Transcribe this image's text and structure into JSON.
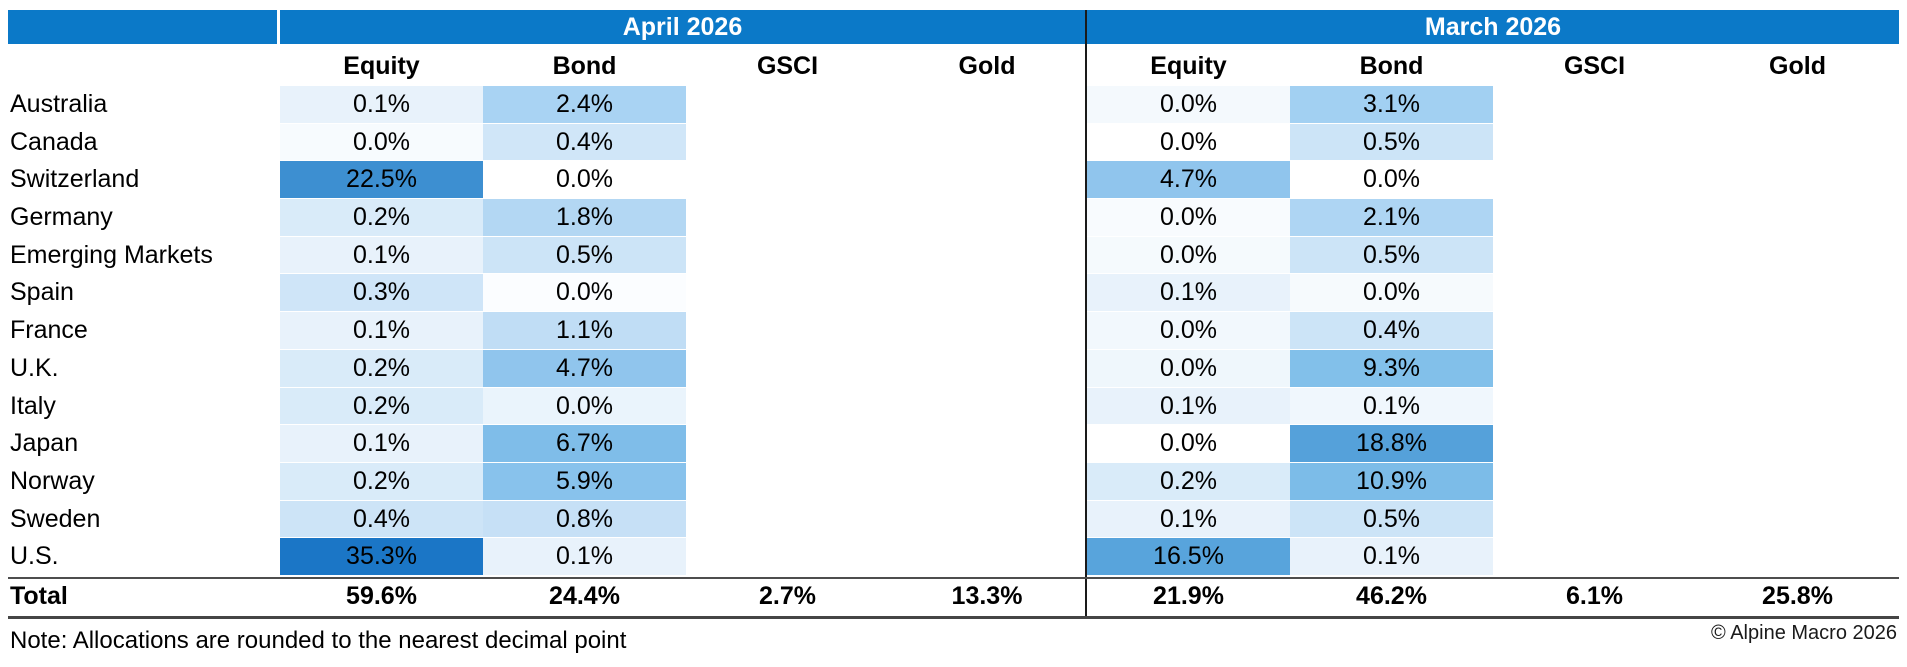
{
  "accent": {
    "header_blue": "#0b79c8",
    "divider_black": "#1a1a1a",
    "rule_dark": "#4d4d4d",
    "heat_max_blue": "#1b76c6",
    "heat_min_white": "#ffffff"
  },
  "months": {
    "april": "April 2026",
    "march": "March 2026"
  },
  "columns": [
    "Equity",
    "Bond",
    "GSCI",
    "Gold"
  ],
  "table": {
    "rows": [
      {
        "label": "Australia",
        "april": {
          "equity": {
            "v": "0.1%",
            "bg": "#e8f2fb"
          },
          "bond": {
            "v": "2.4%",
            "bg": "#a9d3f3"
          }
        },
        "march": {
          "equity": {
            "v": "0.0%",
            "bg": "#f4f9fd"
          },
          "bond": {
            "v": "3.1%",
            "bg": "#a2d0f2"
          }
        }
      },
      {
        "label": "Canada",
        "april": {
          "equity": {
            "v": "0.0%",
            "bg": "#f7fbfe"
          },
          "bond": {
            "v": "0.4%",
            "bg": "#d0e6f8"
          }
        },
        "march": {
          "equity": {
            "v": "0.0%",
            "bg": "#ffffff"
          },
          "bond": {
            "v": "0.5%",
            "bg": "#cce4f7"
          }
        }
      },
      {
        "label": "Switzerland",
        "april": {
          "equity": {
            "v": "22.5%",
            "bg": "#3d8fd1"
          },
          "bond": {
            "v": "0.0%",
            "bg": "#ffffff"
          }
        },
        "march": {
          "equity": {
            "v": "4.7%",
            "bg": "#90c5ed"
          },
          "bond": {
            "v": "0.0%",
            "bg": "#ffffff"
          }
        }
      },
      {
        "label": "Germany",
        "april": {
          "equity": {
            "v": "0.2%",
            "bg": "#d9ebf9"
          },
          "bond": {
            "v": "1.8%",
            "bg": "#b3d7f3"
          }
        },
        "march": {
          "equity": {
            "v": "0.0%",
            "bg": "#f8fbfe"
          },
          "bond": {
            "v": "2.1%",
            "bg": "#aed5f3"
          }
        }
      },
      {
        "label": "Emerging Markets",
        "april": {
          "equity": {
            "v": "0.1%",
            "bg": "#e8f2fb"
          },
          "bond": {
            "v": "0.5%",
            "bg": "#cce4f7"
          }
        },
        "march": {
          "equity": {
            "v": "0.0%",
            "bg": "#f5fafd"
          },
          "bond": {
            "v": "0.5%",
            "bg": "#cce4f7"
          }
        }
      },
      {
        "label": "Spain",
        "april": {
          "equity": {
            "v": "0.3%",
            "bg": "#cfe5f8"
          },
          "bond": {
            "v": "0.0%",
            "bg": "#fbfdff"
          }
        },
        "march": {
          "equity": {
            "v": "0.1%",
            "bg": "#e8f2fb"
          },
          "bond": {
            "v": "0.0%",
            "bg": "#f6fafd"
          }
        }
      },
      {
        "label": "France",
        "april": {
          "equity": {
            "v": "0.1%",
            "bg": "#e8f2fb"
          },
          "bond": {
            "v": "1.1%",
            "bg": "#c0ddf5"
          }
        },
        "march": {
          "equity": {
            "v": "0.0%",
            "bg": "#f2f8fd"
          },
          "bond": {
            "v": "0.4%",
            "bg": "#cce4f7"
          }
        }
      },
      {
        "label": "U.K.",
        "april": {
          "equity": {
            "v": "0.2%",
            "bg": "#d9ebf9"
          },
          "bond": {
            "v": "4.7%",
            "bg": "#90c5ed"
          }
        },
        "march": {
          "equity": {
            "v": "0.0%",
            "bg": "#eff7fc"
          },
          "bond": {
            "v": "9.3%",
            "bg": "#82c0ea"
          }
        }
      },
      {
        "label": "Italy",
        "april": {
          "equity": {
            "v": "0.2%",
            "bg": "#d9ebf9"
          },
          "bond": {
            "v": "0.0%",
            "bg": "#eaf4fc"
          }
        },
        "march": {
          "equity": {
            "v": "0.1%",
            "bg": "#e8f2fb"
          },
          "bond": {
            "v": "0.1%",
            "bg": "#f0f7fd"
          }
        }
      },
      {
        "label": "Japan",
        "april": {
          "equity": {
            "v": "0.1%",
            "bg": "#e8f2fb"
          },
          "bond": {
            "v": "6.7%",
            "bg": "#7fbde9"
          }
        },
        "march": {
          "equity": {
            "v": "0.0%",
            "bg": "#ffffff"
          },
          "bond": {
            "v": "18.8%",
            "bg": "#55a1da"
          }
        }
      },
      {
        "label": "Norway",
        "april": {
          "equity": {
            "v": "0.2%",
            "bg": "#d9ebf9"
          },
          "bond": {
            "v": "5.9%",
            "bg": "#88c2ec"
          }
        },
        "march": {
          "equity": {
            "v": "0.2%",
            "bg": "#d9ebf9"
          },
          "bond": {
            "v": "10.9%",
            "bg": "#7cbce8"
          }
        }
      },
      {
        "label": "Sweden",
        "april": {
          "equity": {
            "v": "0.4%",
            "bg": "#cde4f7"
          },
          "bond": {
            "v": "0.8%",
            "bg": "#c6e0f6"
          }
        },
        "march": {
          "equity": {
            "v": "0.1%",
            "bg": "#e8f2fb"
          },
          "bond": {
            "v": "0.5%",
            "bg": "#cce4f7"
          }
        }
      },
      {
        "label": "U.S.",
        "april": {
          "equity": {
            "v": "35.3%",
            "bg": "#1b76c6"
          },
          "bond": {
            "v": "0.1%",
            "bg": "#e8f2fb"
          }
        },
        "march": {
          "equity": {
            "v": "16.5%",
            "bg": "#58a4dc"
          },
          "bond": {
            "v": "0.1%",
            "bg": "#e8f2fb"
          }
        }
      }
    ],
    "total": {
      "label": "Total",
      "april": [
        "59.6%",
        "24.4%",
        "2.7%",
        "13.3%"
      ],
      "march": [
        "21.9%",
        "46.2%",
        "6.1%",
        "25.8%"
      ]
    }
  },
  "note": "Note: Allocations are rounded to the nearest decimal point",
  "copyright": "© Alpine Macro 2026",
  "chart_data": {
    "type": "heatmap",
    "title": "",
    "row_labels": [
      "Australia",
      "Canada",
      "Switzerland",
      "Germany",
      "Emerging Markets",
      "Spain",
      "France",
      "U.K.",
      "Italy",
      "Japan",
      "Norway",
      "Sweden",
      "U.S."
    ],
    "column_groups": [
      "April 2026",
      "March 2026"
    ],
    "columns": [
      "Equity",
      "Bond",
      "GSCI",
      "Gold"
    ],
    "series": [
      {
        "name": "April 2026 Equity",
        "values": [
          0.1,
          0.0,
          22.5,
          0.2,
          0.1,
          0.3,
          0.1,
          0.2,
          0.2,
          0.1,
          0.2,
          0.4,
          35.3
        ]
      },
      {
        "name": "April 2026 Bond",
        "values": [
          2.4,
          0.4,
          0.0,
          1.8,
          0.5,
          0.0,
          1.1,
          4.7,
          0.0,
          6.7,
          5.9,
          0.8,
          0.1
        ]
      },
      {
        "name": "March 2026 Equity",
        "values": [
          0.0,
          0.0,
          4.7,
          0.0,
          0.0,
          0.1,
          0.0,
          0.0,
          0.1,
          0.0,
          0.2,
          0.1,
          16.5
        ]
      },
      {
        "name": "March 2026 Bond",
        "values": [
          3.1,
          0.5,
          0.0,
          2.1,
          0.5,
          0.0,
          0.4,
          9.3,
          0.1,
          18.8,
          10.9,
          0.5,
          0.1
        ]
      }
    ],
    "totals": {
      "April 2026": {
        "Equity": 59.6,
        "Bond": 24.4,
        "GSCI": 2.7,
        "Gold": 13.3
      },
      "March 2026": {
        "Equity": 21.9,
        "Bond": 46.2,
        "GSCI": 6.1,
        "Gold": 25.8
      }
    },
    "color_scale": {
      "min_color": "#ffffff",
      "max_color": "#1b76c6",
      "note": "darker blue = larger allocation; GSCI and Gold per-row cells are blank"
    },
    "legend_position": "none",
    "grid": false
  }
}
